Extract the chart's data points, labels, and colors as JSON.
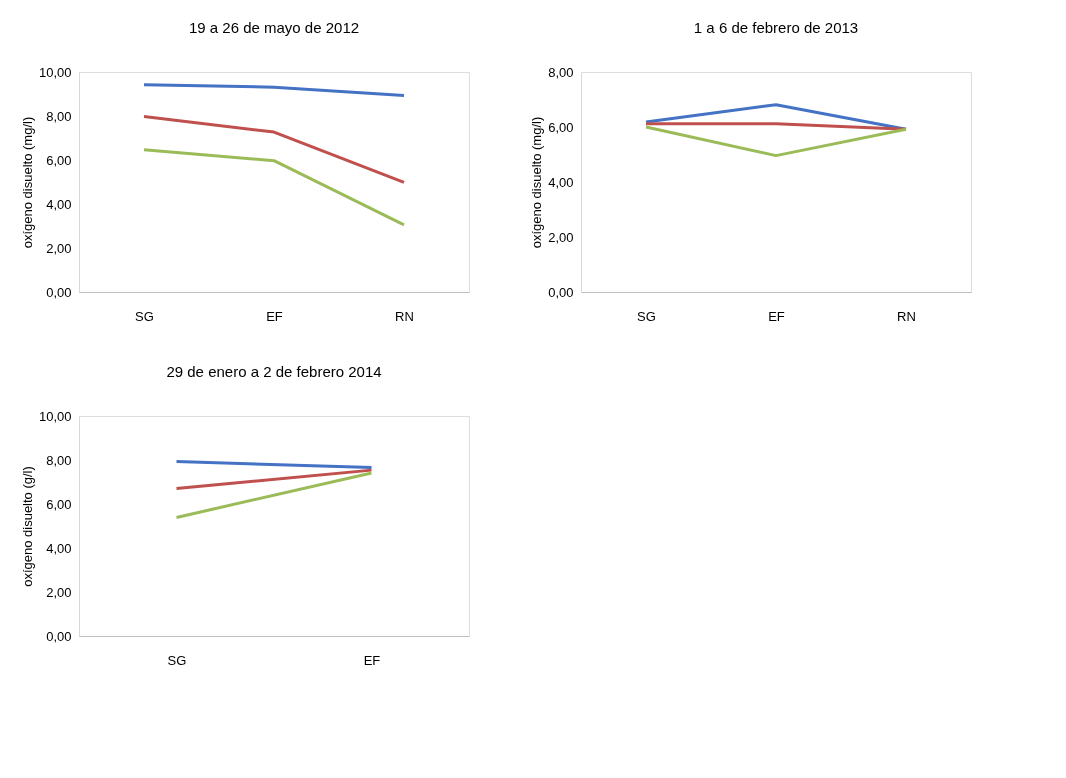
{
  "chart_data": [
    {
      "type": "line",
      "title": "19 a 26 de mayo de 2012",
      "ylabel": "oxígeno disuelto (mg/l)",
      "categories": [
        "SG",
        "EF",
        "RN"
      ],
      "ylim": [
        0,
        10
      ],
      "yticks": [
        {
          "value": 0,
          "label": "0,00"
        },
        {
          "value": 2,
          "label": "2,00"
        },
        {
          "value": 4,
          "label": "4,00"
        },
        {
          "value": 6,
          "label": "6,00"
        },
        {
          "value": 8,
          "label": "8,00"
        },
        {
          "value": 10,
          "label": "10,00"
        }
      ],
      "grid": false,
      "legend": false,
      "marker": "none",
      "line_style": "solid",
      "series": [
        {
          "color": "#4472c4",
          "values": [
            9.42,
            9.31,
            8.93
          ]
        },
        {
          "color": "#c0504d",
          "values": [
            7.98,
            7.27,
            4.98
          ]
        },
        {
          "color": "#9bbb59",
          "values": [
            6.47,
            5.97,
            3.05
          ]
        }
      ]
    },
    {
      "type": "line",
      "title": "1 a 6 de febrero de 2013",
      "ylabel": "oxígeno disuelto (mg/l)",
      "categories": [
        "SG",
        "EF",
        "RN"
      ],
      "ylim": [
        0,
        8
      ],
      "yticks": [
        {
          "value": 0,
          "label": "0,00"
        },
        {
          "value": 2,
          "label": "2,00"
        },
        {
          "value": 4,
          "label": "4,00"
        },
        {
          "value": 6,
          "label": "6,00"
        },
        {
          "value": 8,
          "label": "8,00"
        }
      ],
      "grid": false,
      "legend": false,
      "marker": "none",
      "line_style": "solid",
      "series": [
        {
          "color": "#4472c4",
          "values": [
            6.18,
            6.81,
            5.92
          ]
        },
        {
          "color": "#c0504d",
          "values": [
            6.12,
            6.12,
            5.92
          ]
        },
        {
          "color": "#9bbb59",
          "values": [
            6.0,
            4.96,
            5.92
          ]
        }
      ]
    },
    {
      "type": "line",
      "title": "29 de enero a 2 de febrero 2014",
      "ylabel": "oxígeno disuelto (g/l)",
      "categories": [
        "SG",
        "EF"
      ],
      "ylim": [
        0,
        10
      ],
      "yticks": [
        {
          "value": 0,
          "label": "0,00"
        },
        {
          "value": 2,
          "label": "2,00"
        },
        {
          "value": 4,
          "label": "4,00"
        },
        {
          "value": 6,
          "label": "6,00"
        },
        {
          "value": 8,
          "label": "8,00"
        },
        {
          "value": 10,
          "label": "10,00"
        }
      ],
      "grid": false,
      "legend": false,
      "marker": "none",
      "line_style": "solid",
      "series": [
        {
          "color": "#4472c4",
          "values": [
            7.93,
            7.66
          ]
        },
        {
          "color": "#c0504d",
          "values": [
            6.7,
            7.54
          ]
        },
        {
          "color": "#9bbb59",
          "values": [
            5.39,
            7.41
          ]
        }
      ]
    }
  ]
}
